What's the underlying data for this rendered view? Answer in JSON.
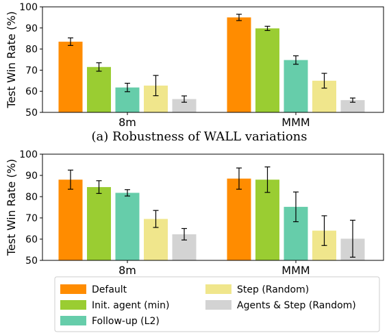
{
  "legend": {
    "placement": "bottom",
    "entries": [
      {
        "name": "Default",
        "color": "#ff8c00"
      },
      {
        "name": "Init. agent (min)",
        "color": "#9acd32"
      },
      {
        "name": "Follow-up (L2)",
        "color": "#66cdaa"
      },
      {
        "name": "Step (Random)",
        "color": "#f0e68c"
      },
      {
        "name": "Agents & Step (Random)",
        "color": "#d3d3d3"
      }
    ]
  },
  "chart_data": [
    {
      "type": "bar",
      "title": "",
      "caption": "(a) Robustness of WALL variations",
      "xlabel": "",
      "ylabel": "Test Win Rate (%)",
      "ylim": [
        50,
        100
      ],
      "yticks": [
        50,
        60,
        70,
        80,
        90,
        100
      ],
      "grid": false,
      "categories": [
        "8m",
        "MMM"
      ],
      "series": [
        {
          "name": "Default",
          "values": [
            83.5,
            95.0
          ],
          "errors": [
            1.8,
            1.5
          ]
        },
        {
          "name": "Init. agent (min)",
          "values": [
            71.5,
            89.8
          ],
          "errors": [
            2.0,
            1.0
          ]
        },
        {
          "name": "Follow-up (L2)",
          "values": [
            61.8,
            74.8
          ],
          "errors": [
            2.0,
            2.0
          ]
        },
        {
          "name": "Step (Random)",
          "values": [
            62.7,
            65.0
          ],
          "errors": [
            4.8,
            3.5
          ]
        },
        {
          "name": "Agents & Step (Random)",
          "values": [
            56.3,
            55.8
          ],
          "errors": [
            1.5,
            1.0
          ]
        }
      ]
    },
    {
      "type": "bar",
      "title": "",
      "xlabel": "",
      "ylabel": "Test Win Rate (%)",
      "ylim": [
        50,
        100
      ],
      "yticks": [
        50,
        60,
        70,
        80,
        90,
        100
      ],
      "grid": false,
      "categories": [
        "8m",
        "MMM"
      ],
      "series": [
        {
          "name": "Default",
          "values": [
            88.0,
            88.5
          ],
          "errors": [
            4.5,
            5.0
          ]
        },
        {
          "name": "Init. agent (min)",
          "values": [
            84.5,
            88.0
          ],
          "errors": [
            3.0,
            6.0
          ]
        },
        {
          "name": "Follow-up (L2)",
          "values": [
            81.8,
            75.2
          ],
          "errors": [
            1.5,
            7.0
          ]
        },
        {
          "name": "Step (Random)",
          "values": [
            69.5,
            64.0
          ],
          "errors": [
            4.0,
            7.0
          ]
        },
        {
          "name": "Agents & Step (Random)",
          "values": [
            62.3,
            60.2
          ],
          "errors": [
            2.7,
            8.7
          ]
        }
      ]
    }
  ]
}
